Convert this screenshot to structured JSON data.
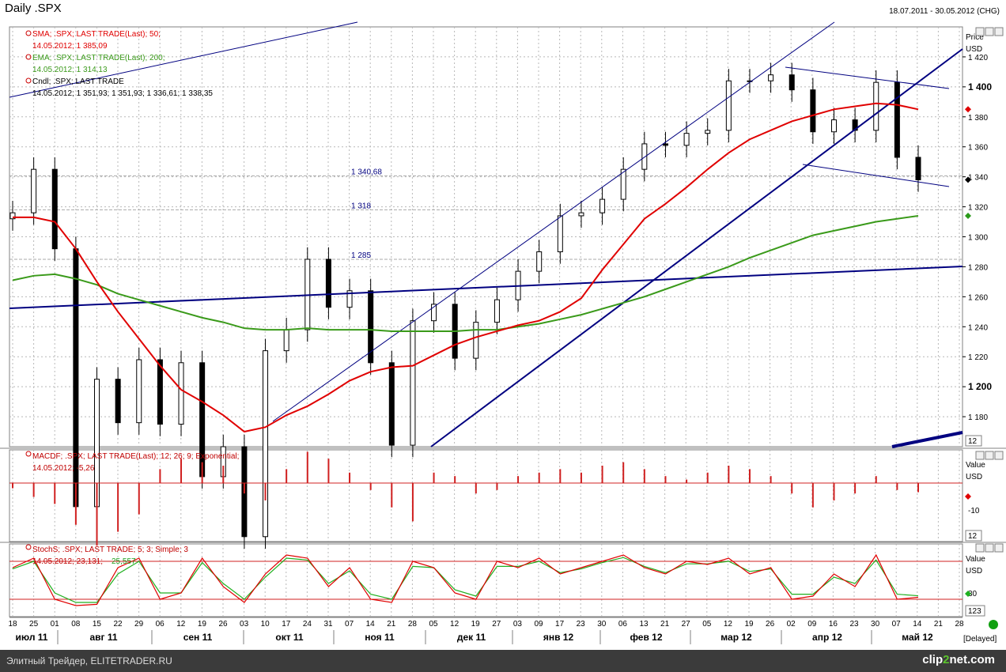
{
  "header": {
    "title": "Daily .SPX",
    "date_range": "18.07.2011 - 30.05.2012 (CHG)"
  },
  "price_panel": {
    "axis_title": "Price",
    "axis_unit": "USD",
    "legend": [
      {
        "line1": "SMA; .SPX; LAST TRADE(Last); 50;",
        "line2": "14.05.2012; 1 385,09",
        "color": "#e00000"
      },
      {
        "line1": "EMA; .SPX; LAST TRADE(Last); 200;",
        "line2": "14.05.2012; 1 314,13",
        "color": "#3a9a1a"
      },
      {
        "line1": "Cndl; .SPX; LAST TRADE",
        "line2": "14.05.2012; 1 351,93; 1 351,93; 1 336,61; 1 338,35",
        "color": "#000000"
      }
    ],
    "level_labels": [
      "1 340,68",
      "1 318",
      "1 285"
    ],
    "corner_box": "12"
  },
  "macd_panel": {
    "legend_line1": "MACDF; .SPX; LAST TRADE(Last); 12; 26; 9; Exponential;",
    "legend_line2": "14.05.2012; -5,26",
    "axis_title": "Value",
    "axis_unit": "USD",
    "ticks": [
      "-10"
    ],
    "corner_box": "12"
  },
  "stoch_panel": {
    "legend_line1": "StochS; .SPX; LAST TRADE; 5; 3; Simple; 3",
    "legend_line2a": "14.05.2012; 23,131;",
    "legend_line2b": "25,557",
    "axis_title": "Value",
    "axis_unit": "USD",
    "ticks": [
      "30"
    ],
    "corner_box": "123"
  },
  "day_ticks": [
    "18",
    "25",
    "01",
    "08",
    "15",
    "22",
    "29",
    "06",
    "12",
    "19",
    "26",
    "03",
    "10",
    "17",
    "24",
    "31",
    "07",
    "14",
    "21",
    "28",
    "05",
    "12",
    "19",
    "27",
    "03",
    "09",
    "17",
    "23",
    "30",
    "06",
    "13",
    "21",
    "27",
    "05",
    "12",
    "19",
    "26",
    "02",
    "09",
    "16",
    "23",
    "30",
    "07",
    "14",
    "21",
    "28"
  ],
  "month_labels": [
    "июл 11",
    "авг 11",
    "сен 11",
    "окт 11",
    "ноя 11",
    "дек 11",
    "янв 12",
    "фев 12",
    "мар 12",
    "апр 12",
    "май 12"
  ],
  "status_label": "[Delayed]",
  "footer": {
    "left_text": "Элитный Трейдер, ELITETRADER.RU",
    "logo_prefix": "clip",
    "logo_num": "2",
    "logo_suffix": "net.com"
  },
  "colors": {
    "sma50": "#e00000",
    "ema200": "#3a9a1a",
    "trendline": "#000080",
    "macd": "#d02020",
    "stoch_k": "#e00000",
    "stoch_d": "#20b020",
    "grid": "#b8b8b8"
  },
  "chart_data": {
    "type": "line",
    "title": "Daily .SPX",
    "x_range": [
      "18.07.2011",
      "30.05.2012"
    ],
    "y_axis": {
      "label": "Price",
      "unit": "USD",
      "range": [
        1160,
        1440
      ]
    },
    "y_ticks": [
      1180,
      1200,
      1220,
      1240,
      1260,
      1280,
      1300,
      1320,
      1340,
      1360,
      1380,
      1400,
      1420
    ],
    "y_tick_labels": [
      "1 180",
      "1 200",
      "1 220",
      "1 240",
      "1 260",
      "1 280",
      "1 300",
      "1 320",
      "1 340",
      "1 360",
      "1 380",
      "1 400",
      "1 420"
    ],
    "bold_ticks": [
      "1 200",
      "1 400"
    ],
    "x_dates": [
      "2011-07-18",
      "2011-07-25",
      "2011-08-01",
      "2011-08-08",
      "2011-08-15",
      "2011-08-22",
      "2011-08-29",
      "2011-09-06",
      "2011-09-12",
      "2011-09-19",
      "2011-09-26",
      "2011-10-03",
      "2011-10-10",
      "2011-10-17",
      "2011-10-24",
      "2011-10-31",
      "2011-11-07",
      "2011-11-14",
      "2011-11-21",
      "2011-11-28",
      "2011-12-05",
      "2011-12-12",
      "2011-12-19",
      "2011-12-27",
      "2012-01-03",
      "2012-01-09",
      "2012-01-17",
      "2012-01-23",
      "2012-01-30",
      "2012-02-06",
      "2012-02-13",
      "2012-02-21",
      "2012-02-27",
      "2012-03-05",
      "2012-03-12",
      "2012-03-19",
      "2012-03-26",
      "2012-04-02",
      "2012-04-09",
      "2012-04-16",
      "2012-04-23",
      "2012-04-30",
      "2012-05-07",
      "2012-05-14"
    ],
    "close": [
      1316,
      1345,
      1292,
      1120,
      1205,
      1176,
      1218,
      1175,
      1216,
      1140,
      1160,
      1100,
      1224,
      1238,
      1285,
      1253,
      1264,
      1216,
      1161,
      1244,
      1255,
      1219,
      1243,
      1258,
      1277,
      1290,
      1314,
      1316,
      1325,
      1345,
      1362,
      1361,
      1369,
      1371,
      1404,
      1404,
      1408,
      1398,
      1370,
      1378,
      1371,
      1403,
      1353,
      1338
    ],
    "series": [
      {
        "name": "SMA; .SPX; LAST TRADE(Last); 50;",
        "values": [
          1313,
          1313,
          1310,
          1292,
          1270,
          1250,
          1232,
          1214,
          1198,
          1190,
          1181,
          1170,
          1173,
          1181,
          1187,
          1195,
          1204,
          1210,
          1213,
          1214,
          1221,
          1228,
          1233,
          1237,
          1241,
          1244,
          1250,
          1259,
          1278,
          1295,
          1312,
          1322,
          1333,
          1345,
          1356,
          1365,
          1371,
          1377,
          1381,
          1385,
          1387,
          1389,
          1388,
          1385
        ]
      },
      {
        "name": "EMA; .SPX; LAST TRADE(Last); 200;",
        "values": [
          1271,
          1274,
          1275,
          1272,
          1268,
          1262,
          1258,
          1254,
          1250,
          1246,
          1243,
          1239,
          1238,
          1238,
          1239,
          1238,
          1238,
          1238,
          1237,
          1237,
          1237,
          1237,
          1238,
          1238,
          1240,
          1242,
          1245,
          1248,
          1252,
          1256,
          1260,
          1265,
          1270,
          1275,
          1280,
          1286,
          1291,
          1296,
          1301,
          1304,
          1307,
          1310,
          1312,
          1314
        ]
      },
      {
        "name": "Resistance 1 285",
        "values": [
          1260,
          1285
        ]
      },
      {
        "name": "Support 1 318",
        "values": [
          1318
        ]
      },
      {
        "name": "Level 1 340,68",
        "values": [
          1340.68
        ]
      }
    ],
    "macd": {
      "legend": "MACDF; .SPX; LAST TRADE(Last); 12; 26; 9; Exponential;",
      "last_value": -5.26,
      "histogram": [
        -3,
        -8,
        -12,
        -24,
        -36,
        -28,
        -18,
        8,
        14,
        12,
        10,
        -6,
        -10,
        8,
        18,
        14,
        6,
        -4,
        -14,
        -22,
        6,
        4,
        -6,
        -4,
        4,
        6,
        8,
        6,
        10,
        12,
        8,
        4,
        2,
        6,
        10,
        8,
        4,
        -6,
        -14,
        -10,
        -6,
        4,
        -4,
        -5.26
      ]
    },
    "stochastic": {
      "legend": "StochS; .SPX; LAST TRADE; 5; 3; Simple; 3",
      "k_last": 23.131,
      "d_last": 25.557,
      "k": [
        70,
        85,
        20,
        10,
        12,
        70,
        85,
        20,
        30,
        85,
        40,
        15,
        60,
        90,
        85,
        40,
        70,
        20,
        15,
        80,
        70,
        30,
        20,
        80,
        70,
        85,
        60,
        70,
        80,
        90,
        70,
        60,
        80,
        75,
        85,
        60,
        70,
        20,
        25,
        60,
        40,
        90,
        20,
        23.131
      ],
      "d": [
        68,
        80,
        30,
        15,
        15,
        60,
        80,
        30,
        30,
        78,
        45,
        20,
        55,
        85,
        82,
        45,
        65,
        28,
        20,
        72,
        70,
        35,
        25,
        72,
        72,
        80,
        62,
        68,
        78,
        86,
        72,
        62,
        76,
        76,
        80,
        64,
        68,
        28,
        28,
        55,
        45,
        82,
        28,
        25.557
      ]
    }
  }
}
